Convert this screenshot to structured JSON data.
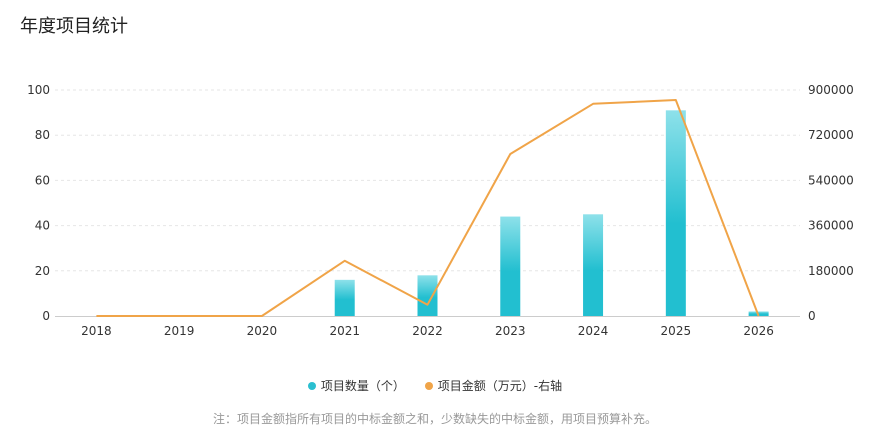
{
  "page": {
    "title": "年度项目统计"
  },
  "colors": {
    "bar_top": "#8ee1ea",
    "bar_bottom": "#22bfd0",
    "line": "#f0a448",
    "grid": "#e6e6e6",
    "axis": "#cccccc"
  },
  "chart_data": {
    "type": "bar+line",
    "categories": [
      "2018",
      "2019",
      "2020",
      "2021",
      "2022",
      "2023",
      "2024",
      "2025",
      "2026"
    ],
    "series": [
      {
        "name": "项目数量（个）",
        "type": "bar",
        "axis": "left",
        "values": [
          0,
          0,
          0,
          16,
          18,
          44,
          45,
          91,
          2
        ]
      },
      {
        "name": "项目金额（万元）-右轴",
        "type": "line",
        "axis": "right",
        "values": [
          0,
          0,
          0,
          220000,
          45000,
          645000,
          845000,
          860000,
          0
        ]
      }
    ],
    "y_left": {
      "min": 0,
      "max": 100,
      "ticks": [
        "0",
        "20",
        "40",
        "60",
        "80",
        "100"
      ]
    },
    "y_right": {
      "min": 0,
      "max": 900000,
      "ticks": [
        "0",
        "180000",
        "360000",
        "540000",
        "720000",
        "900000"
      ]
    }
  },
  "legend": {
    "items": [
      {
        "label": "项目数量（个）",
        "color": "#2bbfd0"
      },
      {
        "label": "项目金额（万元）-右轴",
        "color": "#f0a448"
      }
    ]
  },
  "note": "注：项目金额指所有项目的中标金额之和，少数缺失的中标金额，用项目预算补充。"
}
